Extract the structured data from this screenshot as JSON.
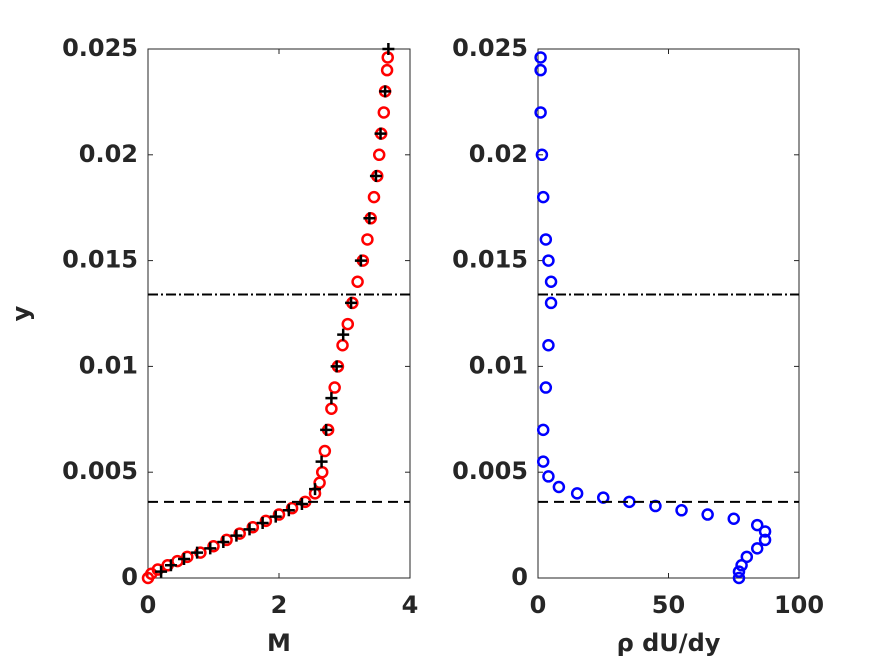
{
  "chart_data": [
    {
      "type": "scatter",
      "xlabel": "M",
      "ylabel": "y",
      "xlim": [
        0,
        4
      ],
      "xticks": [
        0,
        2,
        4
      ],
      "ylim": [
        0,
        0.025
      ],
      "yticks": [
        0,
        0.005,
        0.01,
        0.015,
        0.02,
        0.025
      ],
      "hlines": [
        {
          "y": 0.0134,
          "dash": "dashdot"
        },
        {
          "y": 0.0036,
          "dash": "dashed"
        }
      ],
      "series": [
        {
          "color": "#ff0000",
          "marker": "circle",
          "x": [
            0,
            0.05,
            0.15,
            0.3,
            0.45,
            0.6,
            0.8,
            1.0,
            1.2,
            1.4,
            1.6,
            1.8,
            2.0,
            2.2,
            2.4,
            2.55,
            2.62,
            2.66,
            2.7,
            2.75,
            2.8,
            2.85,
            2.9,
            2.97,
            3.05,
            3.12,
            3.2,
            3.28,
            3.35,
            3.4,
            3.45,
            3.5,
            3.53,
            3.56,
            3.6,
            3.62,
            3.65,
            3.66
          ],
          "values": [
            0,
            0.0002,
            0.0004,
            0.0006,
            0.0008,
            0.001,
            0.0012,
            0.0015,
            0.0018,
            0.0021,
            0.0024,
            0.0027,
            0.003,
            0.0033,
            0.0036,
            0.004,
            0.0045,
            0.005,
            0.006,
            0.007,
            0.008,
            0.009,
            0.01,
            0.011,
            0.012,
            0.013,
            0.014,
            0.015,
            0.016,
            0.017,
            0.018,
            0.019,
            0.02,
            0.021,
            0.022,
            0.023,
            0.024,
            0.0246
          ]
        },
        {
          "color": "#000000",
          "marker": "plus",
          "x": [
            0.2,
            0.35,
            0.55,
            0.75,
            0.95,
            1.15,
            1.35,
            1.55,
            1.75,
            1.95,
            2.15,
            2.35,
            2.55,
            2.65,
            2.72,
            2.8,
            2.88,
            2.98,
            3.1,
            3.25,
            3.38,
            3.48,
            3.55,
            3.62,
            3.67
          ],
          "values": [
            0.0003,
            0.0006,
            0.0009,
            0.0012,
            0.0014,
            0.0017,
            0.002,
            0.0023,
            0.0026,
            0.0029,
            0.0032,
            0.0035,
            0.0042,
            0.0055,
            0.007,
            0.0085,
            0.01,
            0.0115,
            0.013,
            0.015,
            0.017,
            0.019,
            0.021,
            0.023,
            0.025
          ]
        }
      ]
    },
    {
      "type": "scatter",
      "xlabel": "ρ dU/dy",
      "xlim": [
        0,
        100
      ],
      "xticks": [
        0,
        50,
        100
      ],
      "ylim": [
        0,
        0.025
      ],
      "yticks": [
        0,
        0.005,
        0.01,
        0.015,
        0.02,
        0.025
      ],
      "hlines": [
        {
          "y": 0.0134,
          "dash": "dashdot"
        },
        {
          "y": 0.0036,
          "dash": "dashed"
        }
      ],
      "series": [
        {
          "color": "#0000ff",
          "marker": "circle",
          "x": [
            77,
            77,
            78,
            80,
            84,
            87,
            87,
            84,
            75,
            65,
            55,
            45,
            35,
            25,
            15,
            8,
            4,
            2,
            2,
            3,
            4,
            5,
            5,
            4,
            3,
            2,
            1.5,
            1,
            1,
            1
          ],
          "values": [
            0,
            0.0003,
            0.0006,
            0.001,
            0.0014,
            0.0018,
            0.0022,
            0.0025,
            0.0028,
            0.003,
            0.0032,
            0.0034,
            0.0036,
            0.0038,
            0.004,
            0.0043,
            0.0048,
            0.0055,
            0.007,
            0.009,
            0.011,
            0.013,
            0.014,
            0.015,
            0.016,
            0.018,
            0.02,
            0.022,
            0.024,
            0.0246
          ]
        }
      ]
    }
  ]
}
